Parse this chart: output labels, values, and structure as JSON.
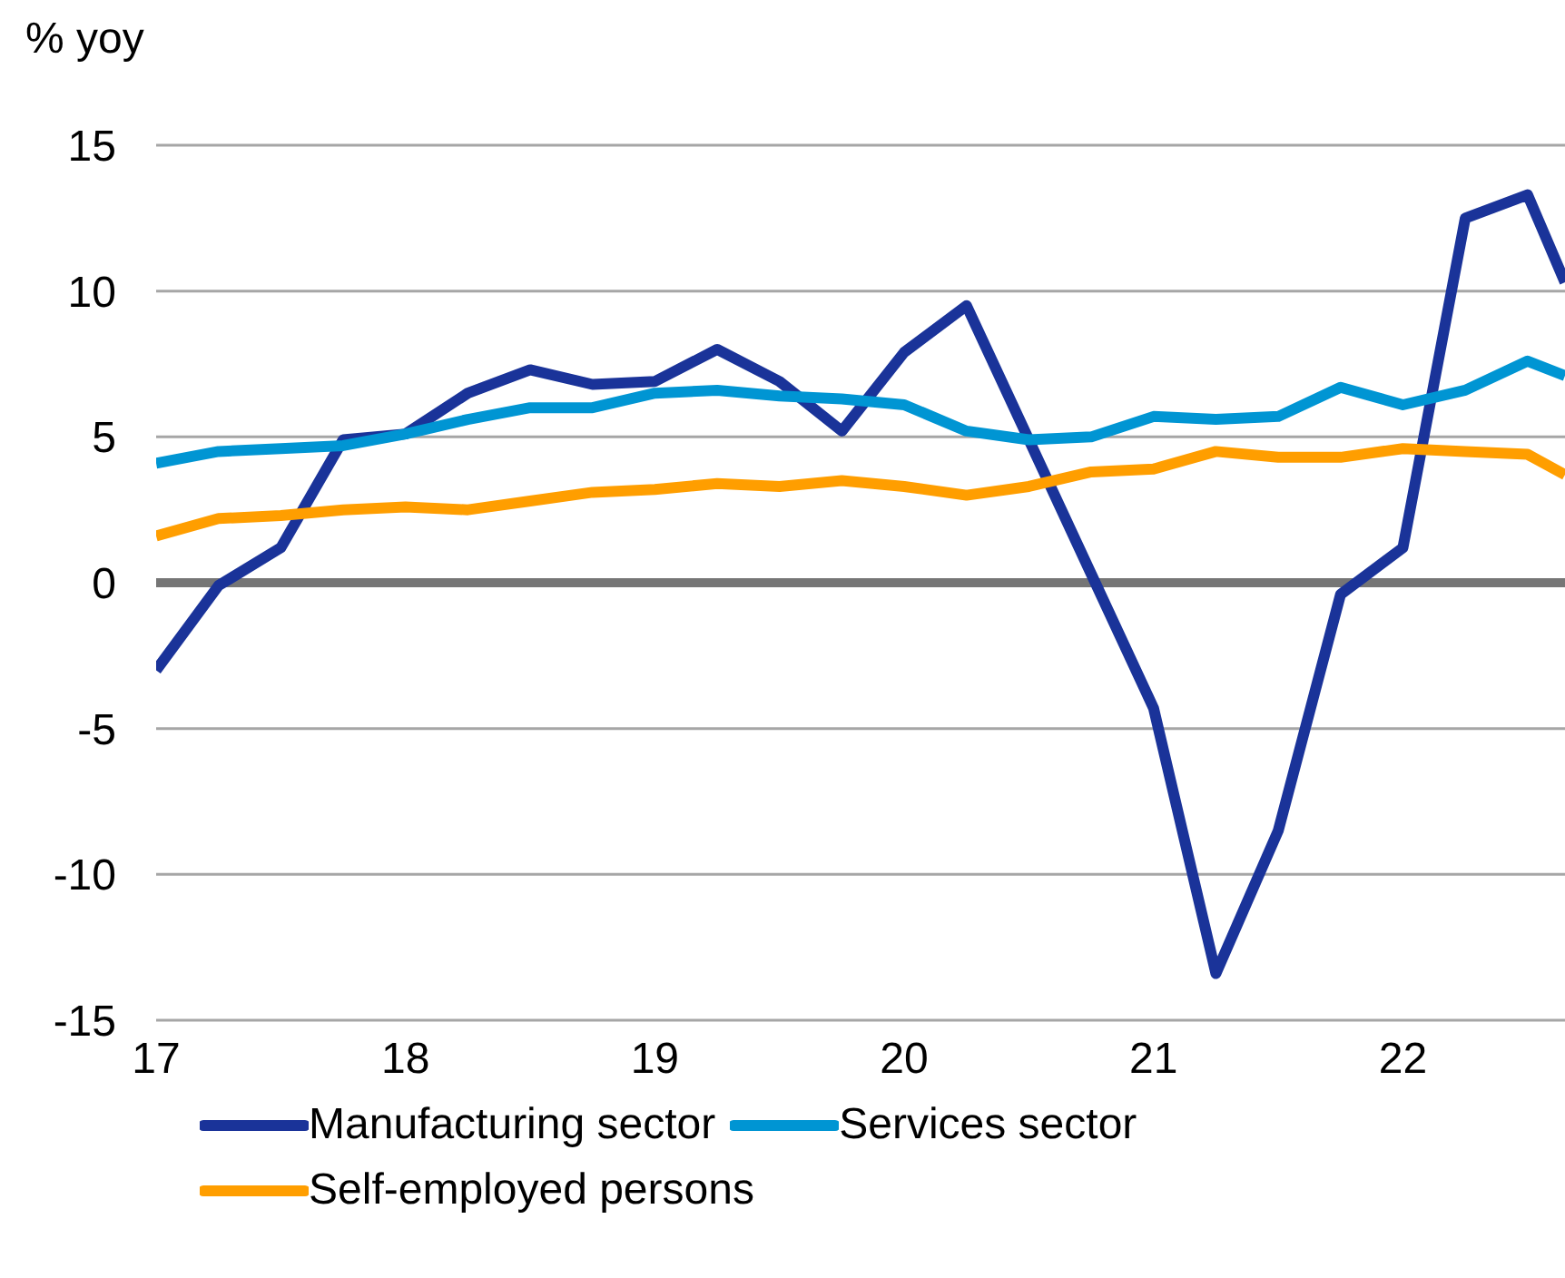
{
  "chart_data": {
    "type": "line",
    "ylabel": "% yoy",
    "x": [
      17,
      17.25,
      17.5,
      17.75,
      18,
      18.25,
      18.5,
      18.75,
      19,
      19.25,
      19.5,
      19.75,
      20,
      20.25,
      20.5,
      20.75,
      21,
      21.25,
      21.5,
      21.75,
      22,
      22.25,
      22.5,
      22.65
    ],
    "series": [
      {
        "name": "Manufacturing sector",
        "color": "#1a3399",
        "values": [
          -3.0,
          -0.1,
          1.2,
          4.9,
          5.1,
          6.5,
          7.3,
          6.8,
          6.9,
          8.0,
          6.9,
          5.2,
          7.9,
          9.5,
          4.9,
          0.3,
          -4.3,
          -13.4,
          -8.5,
          -0.4,
          1.2,
          12.5,
          13.3,
          10.3
        ]
      },
      {
        "name": "Services sector",
        "color": "#0095d3",
        "values": [
          4.1,
          4.5,
          4.6,
          4.7,
          5.1,
          5.6,
          6.0,
          6.0,
          6.5,
          6.6,
          6.4,
          6.3,
          6.1,
          5.2,
          4.9,
          5.0,
          5.7,
          5.6,
          5.7,
          6.7,
          6.1,
          6.6,
          7.6,
          7.1
        ]
      },
      {
        "name": "Self-employed persons",
        "color": "#ff9e00",
        "values": [
          1.6,
          2.2,
          2.3,
          2.5,
          2.6,
          2.5,
          2.8,
          3.1,
          3.2,
          3.4,
          3.3,
          3.5,
          3.3,
          3.0,
          3.3,
          3.8,
          3.9,
          4.5,
          4.3,
          4.3,
          4.6,
          4.5,
          4.4,
          3.7
        ]
      }
    ],
    "xlim": [
      17,
      22.65
    ],
    "xticks": [
      17,
      18,
      19,
      20,
      21,
      22
    ],
    "ylim": [
      -15,
      15
    ],
    "yticks": [
      -15,
      -10,
      -5,
      0,
      5,
      10,
      15
    ],
    "ref_lines": [
      {
        "axis": "y",
        "value": 0,
        "color": "#767676"
      }
    ],
    "grid": "y",
    "legend": "bottom",
    "marker": "none",
    "line_style": "solid"
  }
}
